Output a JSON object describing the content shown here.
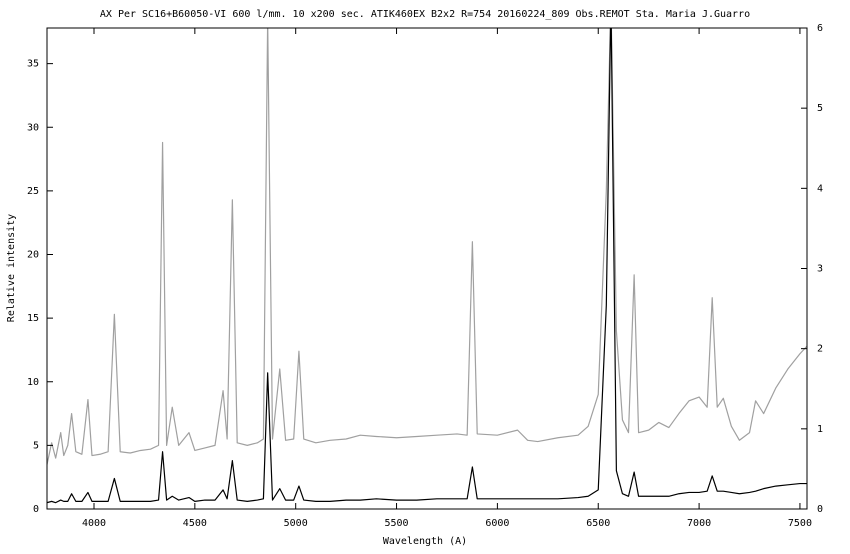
{
  "chart_data": {
    "type": "line",
    "title": "AX Per  SC16+B60050-VI 600 l/mm.  10 x200 sec.  ATIK460EX   B2x2  R=754    20160224_809  Obs.REMOT   Sta. Maria  J.Guarro",
    "x_label": "Wavelength (A)",
    "y_label": "Relative intensity",
    "x": [
      3767,
      3790,
      3810,
      3835,
      3850,
      3870,
      3889,
      3910,
      3940,
      3970,
      3990,
      4030,
      4070,
      4101,
      4130,
      4180,
      4230,
      4280,
      4320,
      4340,
      4360,
      4388,
      4420,
      4471,
      4500,
      4550,
      4600,
      4640,
      4660,
      4686,
      4710,
      4760,
      4810,
      4840,
      4861,
      4885,
      4921,
      4950,
      4990,
      5016,
      5040,
      5100,
      5170,
      5250,
      5320,
      5400,
      5500,
      5600,
      5700,
      5800,
      5850,
      5876,
      5900,
      6000,
      6100,
      6150,
      6200,
      6300,
      6400,
      6450,
      6500,
      6540,
      6563,
      6590,
      6620,
      6650,
      6678,
      6700,
      6750,
      6800,
      6850,
      6900,
      6950,
      7000,
      7040,
      7065,
      7090,
      7120,
      7160,
      7200,
      7250,
      7280,
      7320,
      7380,
      7440,
      7500,
      7535
    ],
    "series": [
      {
        "color": "#a0a0a0",
        "values": [
          3.5,
          5.2,
          4,
          6,
          4.2,
          5,
          7.5,
          4.5,
          4.3,
          8.6,
          4.2,
          4.3,
          4.5,
          15.3,
          4.5,
          4.4,
          4.6,
          4.7,
          5,
          28.8,
          5,
          8,
          5,
          6,
          4.6,
          4.8,
          5,
          9.3,
          5.5,
          24.3,
          5.2,
          5,
          5.2,
          5.5,
          38.5,
          5.5,
          11,
          5.4,
          5.5,
          12.4,
          5.5,
          5.2,
          5.4,
          5.5,
          5.8,
          5.7,
          5.6,
          5.7,
          5.8,
          5.9,
          5.8,
          21,
          5.9,
          5.8,
          6.2,
          5.4,
          5.3,
          5.6,
          5.8,
          6.5,
          9,
          25,
          40,
          14,
          7,
          6,
          18.4,
          6,
          6.2,
          6.8,
          6.4,
          7.5,
          8.5,
          8.8,
          8,
          16.6,
          8,
          8.7,
          6.5,
          5.4,
          6,
          8.5,
          7.5,
          9.5,
          11,
          12.2,
          12.8
        ]
      },
      {
        "color": "#000000",
        "values": [
          0.5,
          0.6,
          0.5,
          0.7,
          0.6,
          0.6,
          1.2,
          0.6,
          0.6,
          1.3,
          0.6,
          0.6,
          0.6,
          2.4,
          0.6,
          0.6,
          0.6,
          0.6,
          0.7,
          4.5,
          0.7,
          1,
          0.7,
          0.9,
          0.6,
          0.7,
          0.7,
          1.5,
          0.8,
          3.8,
          0.7,
          0.6,
          0.7,
          0.8,
          10.7,
          0.7,
          1.6,
          0.7,
          0.7,
          1.8,
          0.7,
          0.6,
          0.6,
          0.7,
          0.7,
          0.8,
          0.7,
          0.7,
          0.8,
          0.8,
          0.8,
          3.3,
          0.8,
          0.8,
          0.8,
          0.8,
          0.8,
          0.8,
          0.9,
          1,
          1.5,
          16,
          40,
          3,
          1.2,
          1,
          2.9,
          1,
          1,
          1,
          1,
          1.2,
          1.3,
          1.3,
          1.4,
          2.6,
          1.4,
          1.4,
          1.3,
          1.2,
          1.3,
          1.4,
          1.6,
          1.8,
          1.9,
          2,
          2
        ]
      }
    ],
    "xlim": [
      3767,
      7535
    ],
    "xticks": [
      4000,
      4500,
      5000,
      5500,
      6000,
      6500,
      7000,
      7500
    ],
    "ylim": [
      0,
      37.8
    ],
    "yticks": [
      0,
      5,
      10,
      15,
      20,
      25,
      30,
      35
    ],
    "y2lim": [
      0,
      6
    ],
    "y2ticks": [
      0,
      1,
      2,
      3,
      4,
      5,
      6
    ]
  }
}
